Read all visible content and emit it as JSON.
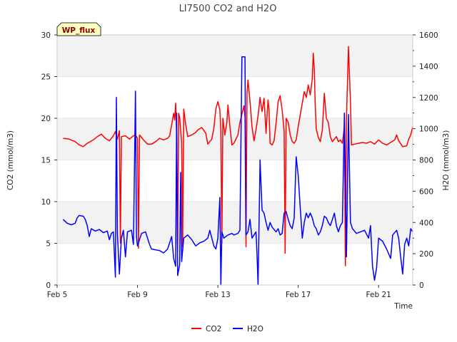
{
  "chart_data": {
    "type": "line",
    "title": "LI7500 CO2 and H2O",
    "badge": "WP_flux",
    "xlabel": "Time",
    "ylabel_left": "CO2 (mmol/m3)",
    "ylabel_right": "H2O (mmol/m3)",
    "xlim": [
      5,
      22.7
    ],
    "ylim_left": [
      0,
      30
    ],
    "ylim_right": [
      0,
      1600
    ],
    "x_ticks": [
      {
        "value": 5,
        "label": "Feb 5"
      },
      {
        "value": 9,
        "label": "Feb 9"
      },
      {
        "value": 13,
        "label": "Feb 13"
      },
      {
        "value": 17,
        "label": "Feb 17"
      },
      {
        "value": 21,
        "label": "Feb 21"
      }
    ],
    "y_ticks_left": [
      0,
      5,
      10,
      15,
      20,
      25,
      30
    ],
    "y_ticks_right": [
      0,
      200,
      400,
      600,
      800,
      1000,
      1200,
      1400,
      1600
    ],
    "bands_left": [
      [
        5,
        10
      ],
      [
        15,
        20
      ],
      [
        25,
        30
      ]
    ],
    "series": [
      {
        "name": "CO2",
        "color": "#ff0000",
        "axis": "left",
        "points": [
          [
            5.3,
            17.6
          ],
          [
            5.6,
            17.5
          ],
          [
            5.9,
            17.2
          ],
          [
            6.1,
            16.8
          ],
          [
            6.3,
            16.6
          ],
          [
            6.5,
            17.0
          ],
          [
            6.8,
            17.4
          ],
          [
            7.0,
            17.8
          ],
          [
            7.2,
            18.1
          ],
          [
            7.4,
            17.6
          ],
          [
            7.6,
            17.3
          ],
          [
            7.8,
            17.9
          ],
          [
            7.9,
            18.4
          ],
          [
            8.0,
            17.5
          ],
          [
            8.1,
            18.5
          ],
          [
            8.15,
            5.0
          ],
          [
            8.2,
            17.8
          ],
          [
            8.4,
            17.9
          ],
          [
            8.6,
            17.5
          ],
          [
            8.8,
            17.9
          ],
          [
            8.9,
            18.0
          ],
          [
            9.0,
            17.6
          ],
          [
            9.05,
            4.4
          ],
          [
            9.1,
            18.0
          ],
          [
            9.3,
            17.4
          ],
          [
            9.5,
            16.9
          ],
          [
            9.7,
            16.9
          ],
          [
            9.9,
            17.2
          ],
          [
            10.1,
            17.6
          ],
          [
            10.3,
            17.4
          ],
          [
            10.5,
            17.6
          ],
          [
            10.6,
            17.9
          ],
          [
            10.7,
            19.2
          ],
          [
            10.8,
            20.6
          ],
          [
            10.85,
            19.8
          ],
          [
            10.9,
            21.8
          ],
          [
            10.95,
            17.8
          ],
          [
            11.0,
            4.0
          ],
          [
            11.05,
            20.6
          ],
          [
            11.1,
            20.1
          ],
          [
            11.2,
            17.1
          ],
          [
            11.25,
            4.6
          ],
          [
            11.3,
            21.1
          ],
          [
            11.4,
            19.2
          ],
          [
            11.5,
            17.8
          ],
          [
            11.7,
            18.0
          ],
          [
            11.9,
            18.3
          ],
          [
            12.0,
            18.6
          ],
          [
            12.2,
            18.9
          ],
          [
            12.4,
            18.2
          ],
          [
            12.5,
            16.9
          ],
          [
            12.7,
            17.5
          ],
          [
            12.8,
            18.8
          ],
          [
            12.9,
            21.1
          ],
          [
            13.0,
            22.0
          ],
          [
            13.1,
            21.0
          ],
          [
            13.15,
            18.5
          ],
          [
            13.2,
            5.0
          ],
          [
            13.25,
            20.0
          ],
          [
            13.35,
            18.0
          ],
          [
            13.45,
            19.5
          ],
          [
            13.5,
            21.6
          ],
          [
            13.6,
            19.0
          ],
          [
            13.7,
            16.8
          ],
          [
            13.8,
            17.0
          ],
          [
            14.0,
            18.0
          ],
          [
            14.1,
            19.5
          ],
          [
            14.2,
            20.5
          ],
          [
            14.3,
            21.5
          ],
          [
            14.35,
            20.0
          ],
          [
            14.4,
            4.6
          ],
          [
            14.45,
            23.0
          ],
          [
            14.5,
            24.6
          ],
          [
            14.6,
            22.0
          ],
          [
            14.7,
            19.0
          ],
          [
            14.8,
            17.3
          ],
          [
            14.9,
            18.6
          ],
          [
            15.0,
            20.3
          ],
          [
            15.1,
            22.5
          ],
          [
            15.2,
            20.8
          ],
          [
            15.3,
            22.4
          ],
          [
            15.4,
            18.2
          ],
          [
            15.45,
            20.4
          ],
          [
            15.5,
            22.2
          ],
          [
            15.55,
            21.0
          ],
          [
            15.6,
            17.0
          ],
          [
            15.7,
            16.8
          ],
          [
            15.8,
            17.3
          ],
          [
            15.9,
            19.5
          ],
          [
            16.0,
            22.0
          ],
          [
            16.1,
            22.7
          ],
          [
            16.2,
            21.0
          ],
          [
            16.3,
            18.5
          ],
          [
            16.35,
            3.8
          ],
          [
            16.4,
            20.0
          ],
          [
            16.5,
            19.5
          ],
          [
            16.6,
            18.0
          ],
          [
            16.7,
            17.2
          ],
          [
            16.8,
            17.0
          ],
          [
            16.9,
            17.4
          ],
          [
            17.0,
            19.0
          ],
          [
            17.2,
            21.8
          ],
          [
            17.3,
            23.2
          ],
          [
            17.4,
            22.5
          ],
          [
            17.5,
            24.0
          ],
          [
            17.6,
            22.8
          ],
          [
            17.7,
            24.7
          ],
          [
            17.75,
            27.8
          ],
          [
            17.8,
            26.0
          ],
          [
            17.85,
            21.5
          ],
          [
            17.9,
            18.7
          ],
          [
            18.0,
            17.7
          ],
          [
            18.1,
            17.2
          ],
          [
            18.2,
            18.6
          ],
          [
            18.3,
            23.0
          ],
          [
            18.4,
            20.0
          ],
          [
            18.5,
            19.5
          ],
          [
            18.6,
            17.8
          ],
          [
            18.7,
            17.2
          ],
          [
            18.8,
            17.5
          ],
          [
            18.9,
            17.8
          ],
          [
            19.0,
            17.2
          ],
          [
            19.1,
            17.4
          ],
          [
            19.2,
            17.0
          ],
          [
            19.3,
            19.0
          ],
          [
            19.35,
            2.3
          ],
          [
            19.4,
            20.0
          ],
          [
            19.5,
            28.6
          ],
          [
            19.6,
            22.0
          ],
          [
            19.65,
            16.8
          ],
          [
            19.8,
            16.9
          ],
          [
            20.0,
            17.0
          ],
          [
            20.2,
            17.1
          ],
          [
            20.4,
            17.0
          ],
          [
            20.6,
            17.2
          ],
          [
            20.8,
            16.9
          ],
          [
            21.0,
            17.4
          ],
          [
            21.2,
            17.0
          ],
          [
            21.4,
            16.8
          ],
          [
            21.6,
            17.1
          ],
          [
            21.8,
            17.4
          ],
          [
            21.9,
            18.0
          ],
          [
            22.0,
            17.3
          ],
          [
            22.2,
            16.6
          ],
          [
            22.4,
            16.7
          ],
          [
            22.5,
            17.5
          ],
          [
            22.6,
            18.0
          ],
          [
            22.7,
            19.0
          ]
        ]
      },
      {
        "name": "H2O",
        "color": "#0000ff",
        "axis": "right",
        "points": [
          [
            5.3,
            420
          ],
          [
            5.5,
            395
          ],
          [
            5.7,
            385
          ],
          [
            5.9,
            395
          ],
          [
            6.0,
            430
          ],
          [
            6.1,
            445
          ],
          [
            6.3,
            440
          ],
          [
            6.4,
            420
          ],
          [
            6.5,
            380
          ],
          [
            6.6,
            310
          ],
          [
            6.7,
            360
          ],
          [
            6.9,
            345
          ],
          [
            7.1,
            355
          ],
          [
            7.3,
            335
          ],
          [
            7.5,
            345
          ],
          [
            7.6,
            290
          ],
          [
            7.7,
            330
          ],
          [
            7.8,
            340
          ],
          [
            7.9,
            50
          ],
          [
            7.95,
            1200
          ],
          [
            8.0,
            330
          ],
          [
            8.1,
            70
          ],
          [
            8.2,
            300
          ],
          [
            8.3,
            350
          ],
          [
            8.4,
            180
          ],
          [
            8.5,
            340
          ],
          [
            8.7,
            350
          ],
          [
            8.8,
            260
          ],
          [
            8.9,
            1240
          ],
          [
            8.95,
            310
          ],
          [
            9.0,
            250
          ],
          [
            9.2,
            330
          ],
          [
            9.4,
            340
          ],
          [
            9.6,
            260
          ],
          [
            9.7,
            230
          ],
          [
            9.9,
            225
          ],
          [
            10.1,
            220
          ],
          [
            10.3,
            205
          ],
          [
            10.5,
            230
          ],
          [
            10.7,
            310
          ],
          [
            10.8,
            170
          ],
          [
            10.9,
            120
          ],
          [
            10.95,
            1100
          ],
          [
            11.0,
            60
          ],
          [
            11.1,
            130
          ],
          [
            11.15,
            720
          ],
          [
            11.2,
            150
          ],
          [
            11.3,
            300
          ],
          [
            11.5,
            320
          ],
          [
            11.7,
            290
          ],
          [
            11.9,
            250
          ],
          [
            12.1,
            270
          ],
          [
            12.3,
            280
          ],
          [
            12.5,
            300
          ],
          [
            12.6,
            350
          ],
          [
            12.8,
            250
          ],
          [
            12.9,
            230
          ],
          [
            13.0,
            300
          ],
          [
            13.1,
            560
          ],
          [
            13.15,
            0
          ],
          [
            13.2,
            340
          ],
          [
            13.3,
            300
          ],
          [
            13.5,
            320
          ],
          [
            13.7,
            330
          ],
          [
            13.8,
            320
          ],
          [
            14.0,
            330
          ],
          [
            14.1,
            350
          ],
          [
            14.2,
            1460
          ],
          [
            14.35,
            1460
          ],
          [
            14.4,
            320
          ],
          [
            14.5,
            340
          ],
          [
            14.6,
            420
          ],
          [
            14.7,
            300
          ],
          [
            14.8,
            320
          ],
          [
            14.9,
            340
          ],
          [
            14.95,
            200
          ],
          [
            15.0,
            0
          ],
          [
            15.1,
            800
          ],
          [
            15.2,
            480
          ],
          [
            15.3,
            460
          ],
          [
            15.4,
            400
          ],
          [
            15.5,
            350
          ],
          [
            15.6,
            400
          ],
          [
            15.7,
            370
          ],
          [
            15.9,
            340
          ],
          [
            16.0,
            360
          ],
          [
            16.1,
            320
          ],
          [
            16.2,
            330
          ],
          [
            16.3,
            460
          ],
          [
            16.4,
            470
          ],
          [
            16.5,
            420
          ],
          [
            16.6,
            380
          ],
          [
            16.7,
            360
          ],
          [
            16.8,
            430
          ],
          [
            16.9,
            820
          ],
          [
            17.0,
            700
          ],
          [
            17.1,
            500
          ],
          [
            17.2,
            300
          ],
          [
            17.3,
            400
          ],
          [
            17.4,
            460
          ],
          [
            17.5,
            430
          ],
          [
            17.6,
            460
          ],
          [
            17.7,
            430
          ],
          [
            17.8,
            380
          ],
          [
            17.9,
            360
          ],
          [
            18.0,
            320
          ],
          [
            18.1,
            340
          ],
          [
            18.2,
            380
          ],
          [
            18.3,
            440
          ],
          [
            18.4,
            430
          ],
          [
            18.5,
            400
          ],
          [
            18.6,
            380
          ],
          [
            18.7,
            420
          ],
          [
            18.8,
            460
          ],
          [
            18.9,
            380
          ],
          [
            19.0,
            340
          ],
          [
            19.1,
            380
          ],
          [
            19.2,
            400
          ],
          [
            19.3,
            1100
          ],
          [
            19.4,
            180
          ],
          [
            19.5,
            1090
          ],
          [
            19.6,
            400
          ],
          [
            19.7,
            360
          ],
          [
            19.9,
            330
          ],
          [
            20.1,
            340
          ],
          [
            20.3,
            350
          ],
          [
            20.5,
            300
          ],
          [
            20.6,
            380
          ],
          [
            20.7,
            120
          ],
          [
            20.8,
            30
          ],
          [
            20.9,
            110
          ],
          [
            21.0,
            300
          ],
          [
            21.2,
            280
          ],
          [
            21.4,
            230
          ],
          [
            21.6,
            170
          ],
          [
            21.7,
            320
          ],
          [
            21.9,
            350
          ],
          [
            22.0,
            300
          ],
          [
            22.1,
            180
          ],
          [
            22.2,
            70
          ],
          [
            22.3,
            260
          ],
          [
            22.4,
            300
          ],
          [
            22.5,
            250
          ],
          [
            22.6,
            360
          ],
          [
            22.7,
            340
          ]
        ]
      }
    ],
    "legend": [
      {
        "name": "CO2",
        "color": "#ff0000"
      },
      {
        "name": "H2O",
        "color": "#0000ff"
      }
    ]
  }
}
